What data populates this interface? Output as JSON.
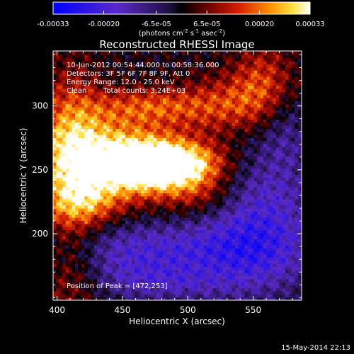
{
  "colorbar": {
    "tick_labels": [
      "-0.00033",
      "-0.00020",
      "-6.5e-05",
      "6.5e-05",
      "0.00020",
      "0.00033"
    ],
    "tick_values": [
      -0.00033,
      -0.0002,
      -6.5e-05,
      6.5e-05,
      0.0002,
      0.00033
    ],
    "range": [
      -0.00033,
      0.00033
    ],
    "units_main": "(photons cm",
    "units_exp1": "-2",
    "units_mid": " s",
    "units_exp2": "-1",
    "units_tail": " asec",
    "units_exp3": "-2",
    "units_close": ")"
  },
  "chart_data": {
    "type": "heatmap",
    "title": "Reconstructed RHESSI Image",
    "xlabel": "Heliocentric X (arcsec)",
    "ylabel": "Heliocentric Y (arcsec)",
    "xlim": [
      397,
      587
    ],
    "ylim": [
      148,
      343
    ],
    "x_ticks": [
      400,
      450,
      500,
      550
    ],
    "y_ticks": [
      200,
      250,
      300
    ],
    "x_tick_labels": [
      "400",
      "450",
      "500",
      "550"
    ],
    "y_tick_labels": [
      "200",
      "250",
      "300"
    ],
    "grid": false,
    "colormap": [
      "#0000ff",
      "#5a2ac8",
      "#1e1040",
      "#000000",
      "#6a0000",
      "#d21e00",
      "#ff8c00",
      "#ffe040",
      "#ffffff"
    ],
    "peak": [
      472,
      253
    ],
    "annotations": {
      "time": "10-Jun-2012 00:54:44.000 to 00:58:36.000",
      "detectors": "Detectors: 3F 5F 6F 7F 8F 9F, Att 0",
      "energy": "Energy Range: 12.0 - 25.0 keV",
      "clean_label": "Clean",
      "counts": "Total counts: 3.24E+03",
      "peak_label": "Position of Peak = [472,253]"
    }
  },
  "footer": {
    "timestamp": "15-May-2014 22:13"
  }
}
